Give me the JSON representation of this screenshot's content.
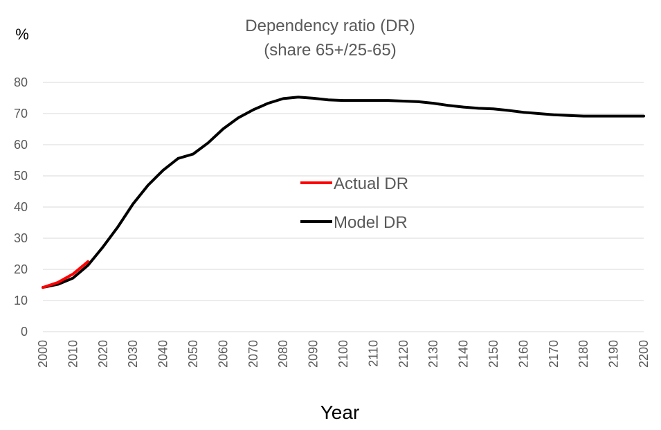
{
  "chart_data": {
    "type": "line",
    "title": "Dependency ratio (DR)",
    "subtitle": "(share 65+/25-65)",
    "xlabel": "Year",
    "ylabel": "%",
    "xlim": [
      2000,
      2200
    ],
    "ylim": [
      0,
      80
    ],
    "x_ticks": [
      2000,
      2010,
      2020,
      2030,
      2040,
      2050,
      2060,
      2070,
      2080,
      2090,
      2100,
      2110,
      2120,
      2130,
      2140,
      2150,
      2160,
      2170,
      2180,
      2190,
      2200
    ],
    "y_ticks": [
      0,
      10,
      20,
      30,
      40,
      50,
      60,
      70,
      80
    ],
    "grid": "horizontal",
    "legend_position": "center",
    "series": [
      {
        "name": "Actual DR",
        "color": "#ff0000",
        "x": [
          2000,
          2005,
          2010,
          2015
        ],
        "y": [
          14.2,
          15.8,
          18.5,
          22.5
        ]
      },
      {
        "name": "Model DR",
        "color": "#000000",
        "x": [
          2000,
          2005,
          2010,
          2015,
          2020,
          2025,
          2030,
          2035,
          2040,
          2045,
          2050,
          2055,
          2060,
          2065,
          2070,
          2075,
          2080,
          2085,
          2090,
          2095,
          2100,
          2105,
          2110,
          2115,
          2120,
          2125,
          2130,
          2135,
          2140,
          2145,
          2150,
          2155,
          2160,
          2165,
          2170,
          2175,
          2180,
          2185,
          2190,
          2195,
          2200
        ],
        "y": [
          14.2,
          15.2,
          17.2,
          21.3,
          27.2,
          33.7,
          41.0,
          47.0,
          51.8,
          55.6,
          57.0,
          60.6,
          65.1,
          68.6,
          71.2,
          73.3,
          74.8,
          75.3,
          74.9,
          74.4,
          74.2,
          74.2,
          74.2,
          74.2,
          74.0,
          73.8,
          73.3,
          72.6,
          72.1,
          71.7,
          71.5,
          71.0,
          70.4,
          70.0,
          69.6,
          69.4,
          69.2,
          69.2,
          69.2,
          69.2,
          69.2
        ]
      }
    ]
  }
}
